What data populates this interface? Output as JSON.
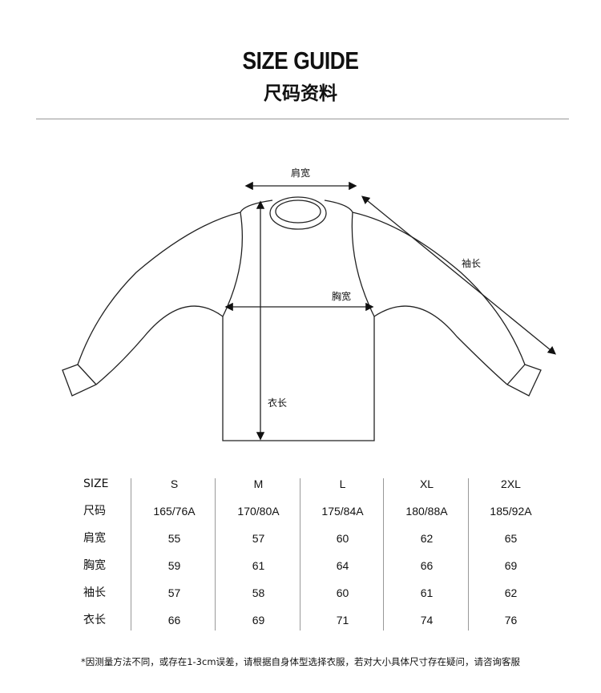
{
  "title_en": "SIZE GUIDE",
  "title_cn": "尺码资料",
  "diagram_labels": {
    "shoulder": "肩宽",
    "sleeve": "袖长",
    "chest": "胸宽",
    "length": "衣长"
  },
  "table": {
    "sizes": [
      "S",
      "M",
      "L",
      "XL",
      "2XL"
    ],
    "rows": [
      {
        "label": "SIZE",
        "values": [
          "S",
          "M",
          "L",
          "XL",
          "2XL"
        ]
      },
      {
        "label": "尺码",
        "values": [
          "165/76A",
          "170/80A",
          "175/84A",
          "180/88A",
          "185/92A"
        ]
      },
      {
        "label": "肩宽",
        "values": [
          "55",
          "57",
          "60",
          "62",
          "65"
        ]
      },
      {
        "label": "胸宽",
        "values": [
          "59",
          "61",
          "64",
          "66",
          "69"
        ]
      },
      {
        "label": "袖长",
        "values": [
          "57",
          "58",
          "60",
          "61",
          "62"
        ]
      },
      {
        "label": "衣长",
        "values": [
          "66",
          "69",
          "71",
          "74",
          "76"
        ]
      }
    ]
  },
  "note": "*因测量方法不同，或存在1-3cm误差，请根据自身体型选择衣服，若对大小具体尺寸存在疑问，请咨询客服"
}
